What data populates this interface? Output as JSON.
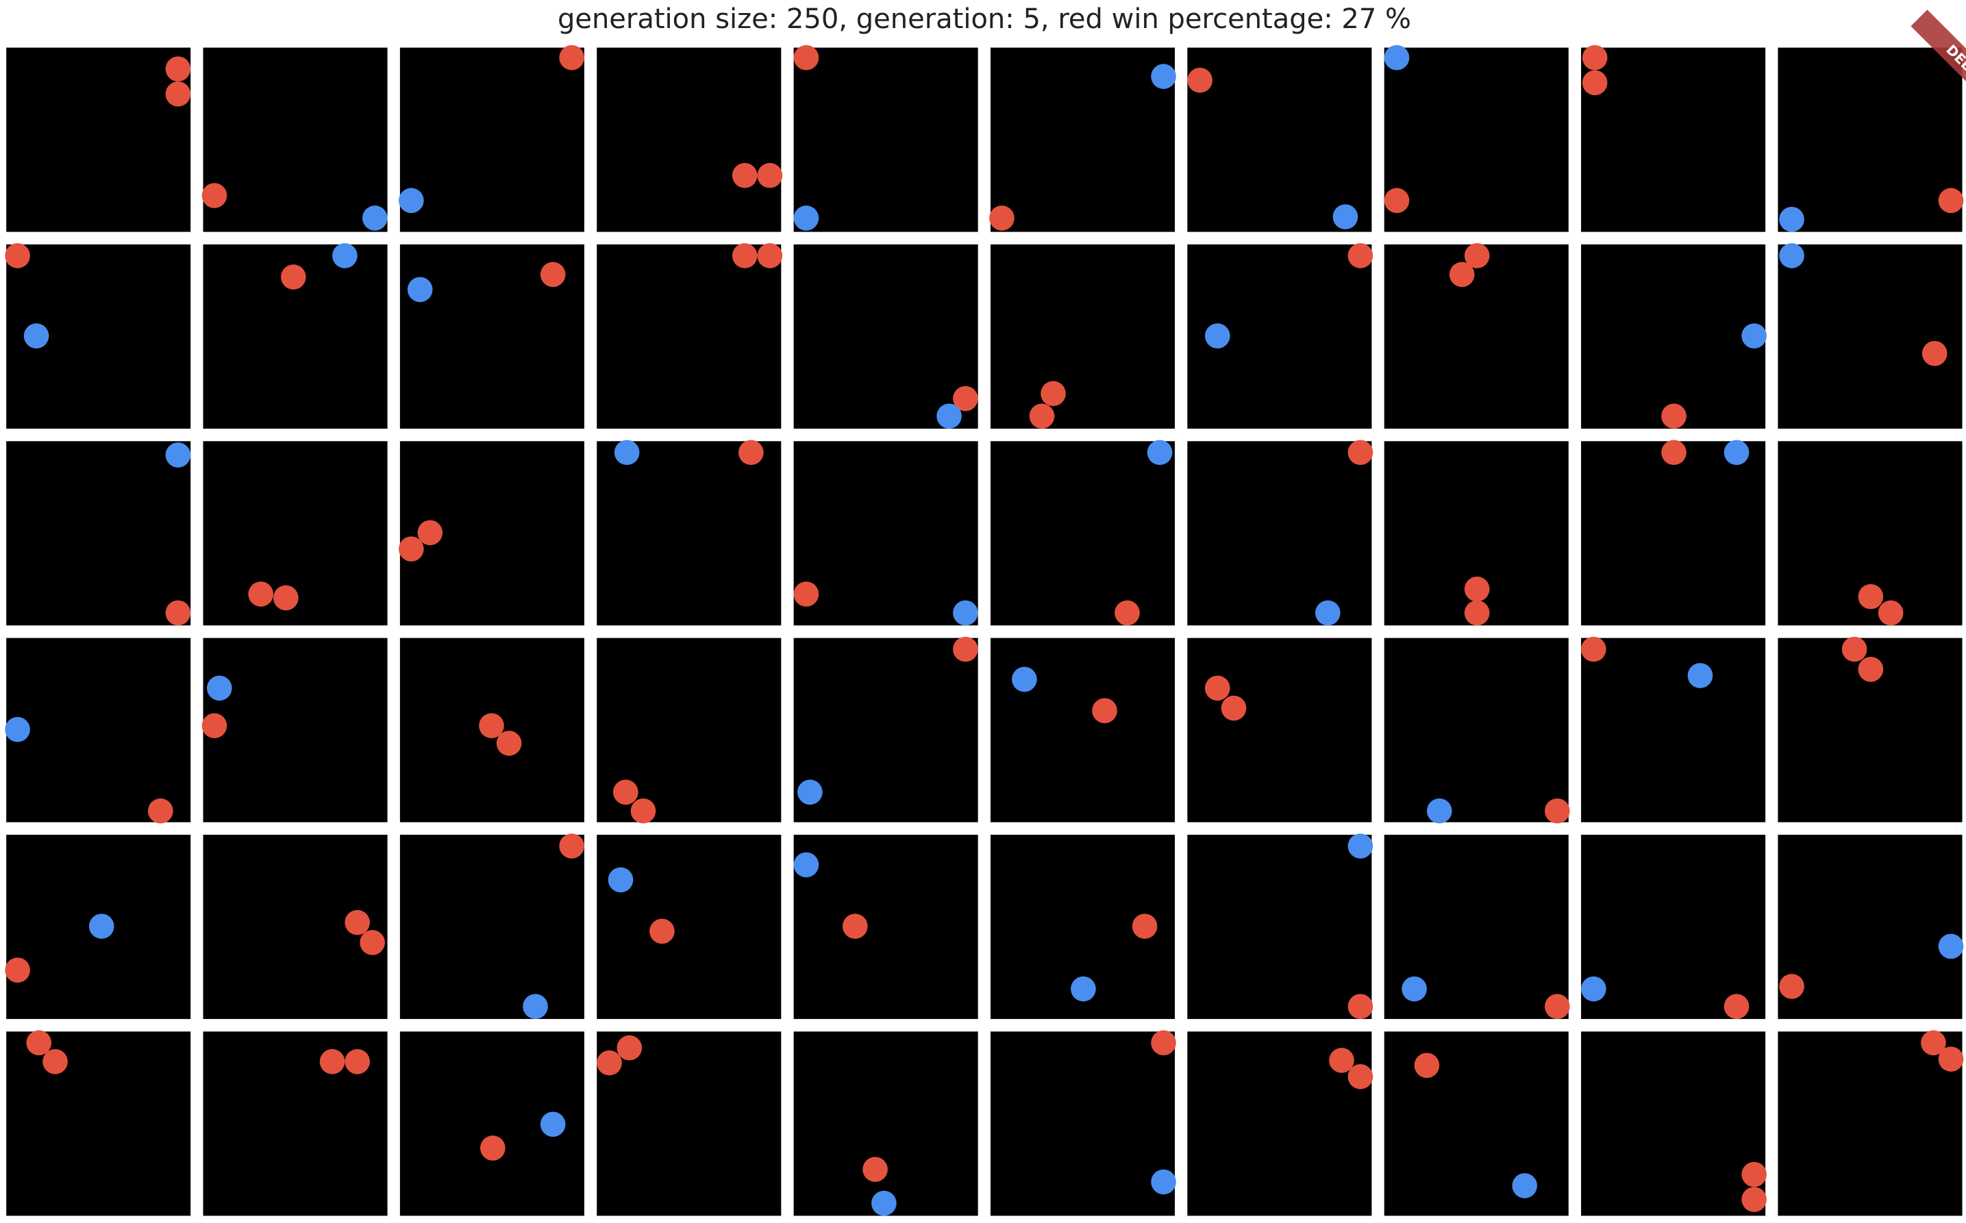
{
  "header": {
    "title": "generation size: 250, generation: 5, red win percentage: 27 %"
  },
  "banner": {
    "label": "DEBUG"
  }
}
